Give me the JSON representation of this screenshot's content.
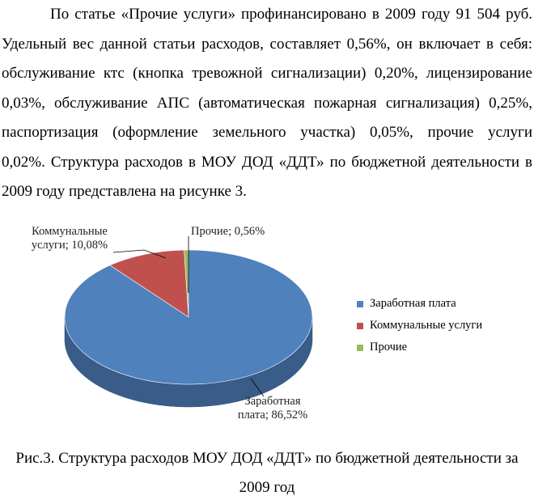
{
  "paragraph": {
    "lines": [
      "По статье «Прочие услуги» профинансировано в 2009 году 91 504 руб.",
      "Удельный вес данной статьи расходов, составляет 0,56%, он включает в себя:",
      "обслуживание ктс (кнопка тревожной сигнализации) 0,20%, лицензирование",
      "0,03%, обслуживание АПС (автоматическая пожарная сигнализация) 0,25%,",
      "паспортизация (оформление земельного участка) 0,05%, прочие услуги",
      "0,02%. Структура расходов в МОУ ДОД «ДДТ» по бюджетной деятельности в",
      "2009 году представлена на рисунке 3."
    ]
  },
  "chart_data": {
    "type": "pie",
    "categories": [
      "Заработная плата",
      "Коммунальные услуги",
      "Прочие"
    ],
    "values": [
      86.52,
      10.08,
      0.56
    ],
    "colors": [
      "#4f81bd",
      "#c0504d",
      "#9bbb59"
    ],
    "data_labels": [
      [
        "Заработная",
        "плата; 86,52%"
      ],
      [
        "Коммунальные",
        "услуги; 10,08%"
      ],
      [
        "Прочие; 0,56%"
      ]
    ],
    "legend_position": "right",
    "legend": [
      "Заработная плата",
      "Коммунальные услуги",
      "Прочие"
    ]
  },
  "caption": {
    "line1": "Рис.3. Структура расходов МОУ ДОД «ДДТ» по бюджетной деятельности за",
    "line2": "2009 год"
  }
}
